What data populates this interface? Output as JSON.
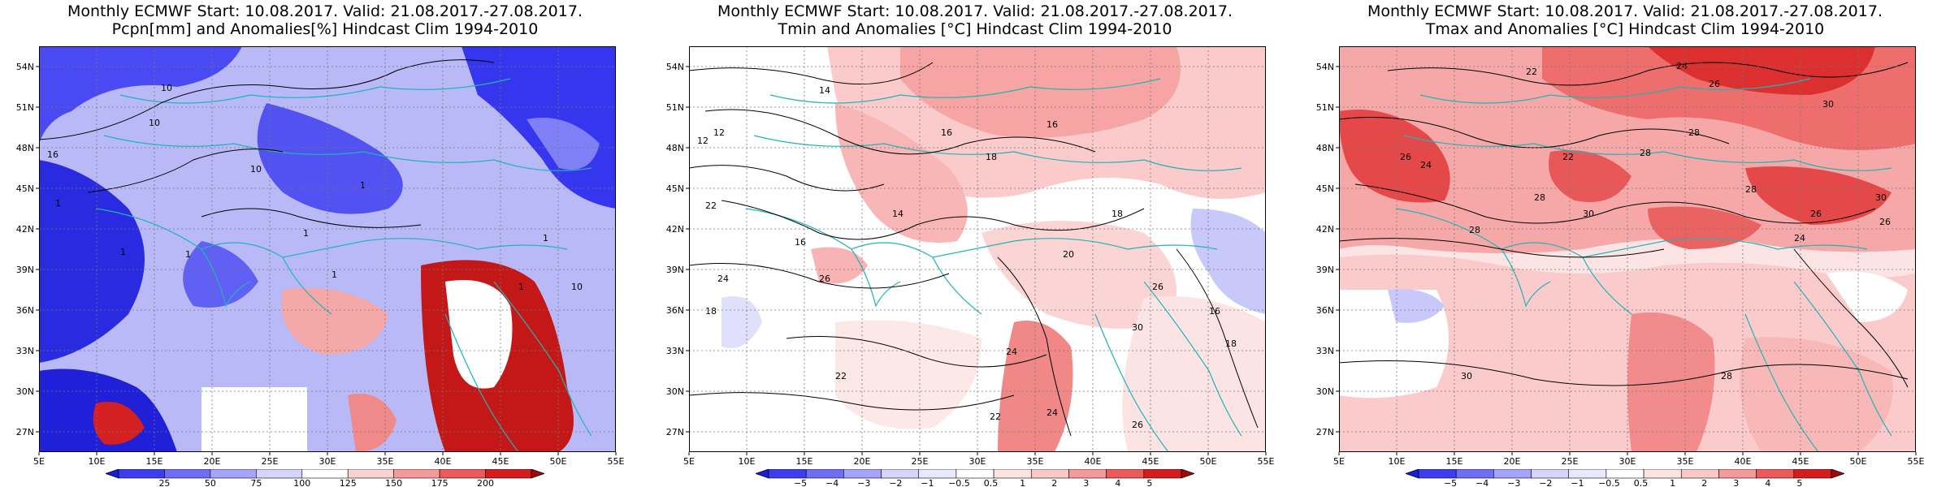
{
  "colors": {
    "coast": "#1fb5b5",
    "contour": "#000000",
    "frame": "#000000"
  },
  "axes": {
    "lon_labels": [
      "5E",
      "10E",
      "15E",
      "20E",
      "25E",
      "30E",
      "35E",
      "40E",
      "45E",
      "50E",
      "55E"
    ],
    "lat_labels": [
      "54N",
      "51N",
      "48N",
      "45N",
      "42N",
      "39N",
      "36N",
      "33N",
      "30N",
      "27N"
    ],
    "lon_range": [
      5,
      55
    ],
    "lat_range": [
      25.5,
      55.5
    ]
  },
  "panels": [
    {
      "title_line1": "Monthly ECMWF Start: 10.08.2017. Valid: 21.08.2017.-27.08.2017.",
      "title_line2": "Pcpn[mm] and Anomalies[%] Hindcast Clim 1994-2010",
      "colorbar": {
        "labels": [
          "25",
          "50",
          "75",
          "100",
          "125",
          "150",
          "175",
          "200"
        ],
        "colors": [
          "#1c1cd6",
          "#3c3cf0",
          "#6e6ef5",
          "#a4a4f8",
          "#d4d4fc",
          "#ffffff",
          "#fbd2d2",
          "#f59a9a",
          "#ec5a5a",
          "#d41c1c",
          "#a00a0a"
        ]
      },
      "contour_labels": [
        "16",
        "10",
        "10",
        "10",
        "1",
        "1",
        "1",
        "1",
        "1",
        "1",
        "1",
        "10",
        "1"
      ]
    },
    {
      "title_line1": "Monthly ECMWF Start: 10.08.2017. Valid: 21.08.2017.-27.08.2017.",
      "title_line2": "Tmin and Anomalies [°C] Hindcast Clim 1994-2010",
      "colorbar": {
        "labels": [
          "−5",
          "−4",
          "−3",
          "−2",
          "−1",
          "−0.5",
          "0.5",
          "1",
          "2",
          "3",
          "4",
          "5"
        ],
        "colors": [
          "#1c1cd6",
          "#3c3cf0",
          "#6e6ef5",
          "#a4a4f8",
          "#d4d4fc",
          "#e8e8fe",
          "#ffffff",
          "#fde4e4",
          "#fbc8c8",
          "#f59a9a",
          "#ec5a5a",
          "#d41c1c",
          "#a00a0a"
        ]
      },
      "contour_labels": [
        "12",
        "14",
        "16",
        "18",
        "16",
        "12",
        "14",
        "22",
        "16",
        "18",
        "24",
        "26",
        "22",
        "18",
        "20",
        "24",
        "26",
        "30",
        "22",
        "24",
        "26",
        "16",
        "18"
      ]
    },
    {
      "title_line1": "Monthly ECMWF Start: 10.08.2017. Valid: 21.08.2017.-27.08.2017.",
      "title_line2": "Tmax and Anomalies [°C] Hindcast Clim 1994-2010",
      "colorbar": {
        "labels": [
          "−5",
          "−4",
          "−3",
          "−2",
          "−1",
          "−0.5",
          "0.5",
          "1",
          "2",
          "3",
          "4",
          "5"
        ],
        "colors": [
          "#1c1cd6",
          "#3c3cf0",
          "#6e6ef5",
          "#a4a4f8",
          "#d4d4fc",
          "#e8e8fe",
          "#ffffff",
          "#fde4e4",
          "#fbc8c8",
          "#f59a9a",
          "#ec5a5a",
          "#d41c1c",
          "#a00a0a"
        ]
      },
      "contour_labels": [
        "24",
        "22",
        "26",
        "28",
        "30",
        "28",
        "26",
        "24",
        "22",
        "28",
        "30",
        "28",
        "26",
        "24",
        "30",
        "28",
        "26",
        "30",
        "28"
      ]
    }
  ]
}
